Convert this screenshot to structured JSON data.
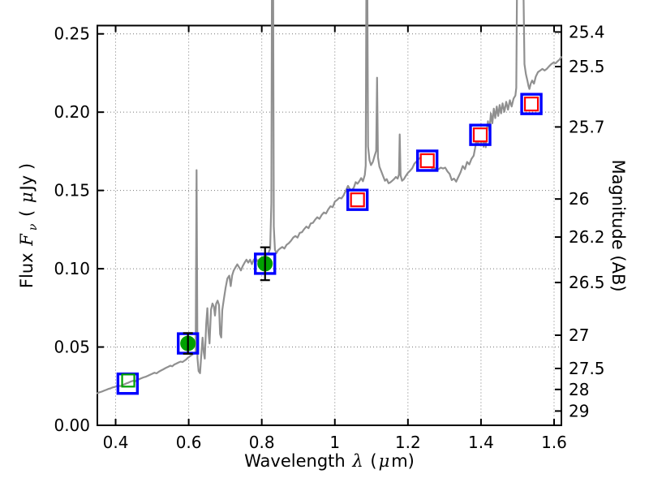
{
  "chart_data": {
    "type": "line+scatter",
    "title": "",
    "xlabel": {
      "text1": "Wavelength ",
      "lambda": "λ",
      "text2": " (",
      "mu": "μ",
      "text3": "m)"
    },
    "ylabel_left": {
      "text1": "Flux ",
      "F": "F",
      "nu": "ν",
      "text2": " ( ",
      "mu": "μ",
      "text3": "Jy )"
    },
    "ylabel_right": "Magnitude (AB)",
    "x_range": [
      0.35,
      1.62
    ],
    "y_range": [
      0.0,
      0.2553
    ],
    "grid": true,
    "x_ticks": [
      {
        "label": "0.4",
        "value": 0.4
      },
      {
        "label": "0.6",
        "value": 0.6
      },
      {
        "label": "0.8",
        "value": 0.8
      },
      {
        "label": "1",
        "value": 1.0
      },
      {
        "label": "1.2",
        "value": 1.2
      },
      {
        "label": "1.4",
        "value": 1.4
      },
      {
        "label": "1.6",
        "value": 1.6
      }
    ],
    "y_ticks_left": [
      {
        "label": "0.00",
        "value": 0.0
      },
      {
        "label": "0.05",
        "value": 0.05
      },
      {
        "label": "0.10",
        "value": 0.1
      },
      {
        "label": "0.15",
        "value": 0.15
      },
      {
        "label": "0.20",
        "value": 0.2
      },
      {
        "label": "0.25",
        "value": 0.25
      }
    ],
    "y_ticks_right": [
      {
        "label": "25.4",
        "value": 25.4,
        "flux": 0.25119
      },
      {
        "label": "25.5",
        "value": 25.5,
        "flux": 0.22909
      },
      {
        "label": "25.7",
        "value": 25.7,
        "flux": 0.19055
      },
      {
        "label": "26",
        "value": 26.0,
        "flux": 0.14454
      },
      {
        "label": "26.2",
        "value": 26.2,
        "flux": 0.12023
      },
      {
        "label": "26.5",
        "value": 26.5,
        "flux": 0.0912
      },
      {
        "label": "27",
        "value": 27.0,
        "flux": 0.05754
      },
      {
        "label": "27.5",
        "value": 27.5,
        "flux": 0.03631
      },
      {
        "label": "28",
        "value": 28.0,
        "flux": 0.02291
      },
      {
        "label": "29",
        "value": 29.0,
        "flux": 0.00912
      }
    ],
    "colors": {
      "spectrum": "#909090",
      "model_square": "#0000ff",
      "observed_green": "#00a000",
      "predicted_red": "#ff0000",
      "error_bar": "#000000",
      "grid": "#777777",
      "axes": "#000000"
    },
    "observed_circles": [
      {
        "wavelength": 0.598,
        "flux": 0.0523,
        "flux_err": 0.0066
      },
      {
        "wavelength": 0.809,
        "flux": 0.1032,
        "flux_err": 0.0105
      }
    ],
    "observed_green_square": {
      "wavelength": 0.4345,
      "flux": 0.0286
    },
    "model_blue_squares": [
      {
        "wavelength": 0.433,
        "flux": 0.0266
      },
      {
        "wavelength": 0.598,
        "flux": 0.0523
      },
      {
        "wavelength": 0.809,
        "flux": 0.1032
      },
      {
        "wavelength": 1.062,
        "flux": 0.144
      },
      {
        "wavelength": 1.253,
        "flux": 0.169
      },
      {
        "wavelength": 1.398,
        "flux": 0.1855
      },
      {
        "wavelength": 1.538,
        "flux": 0.2052
      }
    ],
    "predicted_red_squares": [
      {
        "wavelength": 1.062,
        "flux": 0.144
      },
      {
        "wavelength": 1.253,
        "flux": 0.169
      },
      {
        "wavelength": 1.398,
        "flux": 0.1855
      },
      {
        "wavelength": 1.538,
        "flux": 0.2052
      }
    ],
    "spectrum_points": [
      [
        0.35,
        0.0205
      ],
      [
        0.356,
        0.0211
      ],
      [
        0.362,
        0.0215
      ],
      [
        0.368,
        0.0221
      ],
      [
        0.374,
        0.0226
      ],
      [
        0.38,
        0.0232
      ],
      [
        0.386,
        0.0236
      ],
      [
        0.392,
        0.0242
      ],
      [
        0.398,
        0.0245
      ],
      [
        0.403,
        0.0251
      ],
      [
        0.408,
        0.0254
      ],
      [
        0.413,
        0.025
      ],
      [
        0.418,
        0.0257
      ],
      [
        0.424,
        0.0262
      ],
      [
        0.43,
        0.0268
      ],
      [
        0.436,
        0.0273
      ],
      [
        0.442,
        0.028
      ],
      [
        0.448,
        0.0284
      ],
      [
        0.453,
        0.028
      ],
      [
        0.458,
        0.0288
      ],
      [
        0.464,
        0.0294
      ],
      [
        0.47,
        0.03
      ],
      [
        0.476,
        0.0306
      ],
      [
        0.482,
        0.031
      ],
      [
        0.488,
        0.0316
      ],
      [
        0.494,
        0.0323
      ],
      [
        0.5,
        0.0329
      ],
      [
        0.506,
        0.0336
      ],
      [
        0.512,
        0.0332
      ],
      [
        0.518,
        0.0342
      ],
      [
        0.524,
        0.035
      ],
      [
        0.53,
        0.0357
      ],
      [
        0.537,
        0.0366
      ],
      [
        0.544,
        0.0374
      ],
      [
        0.55,
        0.0381
      ],
      [
        0.555,
        0.0377
      ],
      [
        0.56,
        0.0387
      ],
      [
        0.566,
        0.0394
      ],
      [
        0.572,
        0.0401
      ],
      [
        0.578,
        0.0407
      ],
      [
        0.583,
        0.0404
      ],
      [
        0.588,
        0.0412
      ],
      [
        0.593,
        0.042
      ],
      [
        0.598,
        0.0432
      ],
      [
        0.604,
        0.0442
      ],
      [
        0.61,
        0.0452
      ],
      [
        0.615,
        0.0458
      ],
      [
        0.619,
        0.0468
      ],
      [
        0.6215,
        0.163
      ],
      [
        0.624,
        0.043
      ],
      [
        0.627,
        0.0347
      ],
      [
        0.631,
        0.0333
      ],
      [
        0.635,
        0.047
      ],
      [
        0.638,
        0.056
      ],
      [
        0.641,
        0.0468
      ],
      [
        0.644,
        0.0426
      ],
      [
        0.648,
        0.0648
      ],
      [
        0.651,
        0.0748
      ],
      [
        0.654,
        0.0601
      ],
      [
        0.657,
        0.0523
      ],
      [
        0.661,
        0.0738
      ],
      [
        0.665,
        0.0778
      ],
      [
        0.669,
        0.0758
      ],
      [
        0.672,
        0.0701
      ],
      [
        0.675,
        0.0776
      ],
      [
        0.679,
        0.0796
      ],
      [
        0.683,
        0.0768
      ],
      [
        0.686,
        0.0583
      ],
      [
        0.689,
        0.0561
      ],
      [
        0.692,
        0.0736
      ],
      [
        0.696,
        0.0801
      ],
      [
        0.701,
        0.0878
      ],
      [
        0.706,
        0.0938
      ],
      [
        0.711,
        0.0956
      ],
      [
        0.715,
        0.0889
      ],
      [
        0.719,
        0.0958
      ],
      [
        0.723,
        0.0988
      ],
      [
        0.728,
        0.1008
      ],
      [
        0.733,
        0.1028
      ],
      [
        0.738,
        0.1009
      ],
      [
        0.743,
        0.0989
      ],
      [
        0.748,
        0.1018
      ],
      [
        0.753,
        0.1039
      ],
      [
        0.758,
        0.1058
      ],
      [
        0.763,
        0.1039
      ],
      [
        0.768,
        0.1058
      ],
      [
        0.773,
        0.1029
      ],
      [
        0.778,
        0.1058
      ],
      [
        0.783,
        0.1068
      ],
      [
        0.788,
        0.1049
      ],
      [
        0.793,
        0.1059
      ],
      [
        0.798,
        0.1069
      ],
      [
        0.803,
        0.1059
      ],
      [
        0.808,
        0.1079
      ],
      [
        0.813,
        0.1089
      ],
      [
        0.818,
        0.1099
      ],
      [
        0.823,
        0.1129
      ],
      [
        0.8262,
        0.142
      ],
      [
        0.8278,
        0.28
      ],
      [
        0.8312,
        0.28
      ],
      [
        0.833,
        0.127
      ],
      [
        0.836,
        0.1122
      ],
      [
        0.84,
        0.1099
      ],
      [
        0.845,
        0.1119
      ],
      [
        0.85,
        0.1129
      ],
      [
        0.856,
        0.1139
      ],
      [
        0.862,
        0.1129
      ],
      [
        0.868,
        0.1153
      ],
      [
        0.874,
        0.1163
      ],
      [
        0.88,
        0.1179
      ],
      [
        0.886,
        0.1199
      ],
      [
        0.892,
        0.1209
      ],
      [
        0.898,
        0.1199
      ],
      [
        0.904,
        0.1229
      ],
      [
        0.91,
        0.1233
      ],
      [
        0.916,
        0.1253
      ],
      [
        0.922,
        0.1269
      ],
      [
        0.928,
        0.1259
      ],
      [
        0.934,
        0.1289
      ],
      [
        0.94,
        0.1293
      ],
      [
        0.946,
        0.1313
      ],
      [
        0.952,
        0.1329
      ],
      [
        0.958,
        0.1319
      ],
      [
        0.964,
        0.1343
      ],
      [
        0.97,
        0.1359
      ],
      [
        0.976,
        0.1353
      ],
      [
        0.982,
        0.1379
      ],
      [
        0.988,
        0.1399
      ],
      [
        0.994,
        0.1393
      ],
      [
        1.0,
        0.1429
      ],
      [
        1.006,
        0.1439
      ],
      [
        1.012,
        0.1453
      ],
      [
        1.018,
        0.1449
      ],
      [
        1.024,
        0.1469
      ],
      [
        1.03,
        0.1499
      ],
      [
        1.036,
        0.1529
      ],
      [
        1.041,
        0.1509
      ],
      [
        1.046,
        0.1499
      ],
      [
        1.052,
        0.1519
      ],
      [
        1.057,
        0.1553
      ],
      [
        1.062,
        0.1543
      ],
      [
        1.067,
        0.1559
      ],
      [
        1.072,
        0.1579
      ],
      [
        1.077,
        0.1559
      ],
      [
        1.082,
        0.1599
      ],
      [
        1.0845,
        0.1659
      ],
      [
        1.0862,
        0.28
      ],
      [
        1.0888,
        0.28
      ],
      [
        1.091,
        0.178
      ],
      [
        1.095,
        0.1692
      ],
      [
        1.099,
        0.1662
      ],
      [
        1.104,
        0.1682
      ],
      [
        1.109,
        0.1722
      ],
      [
        1.113,
        0.1752
      ],
      [
        1.1156,
        0.222
      ],
      [
        1.118,
        0.1712
      ],
      [
        1.122,
        0.1652
      ],
      [
        1.127,
        0.1622
      ],
      [
        1.132,
        0.1592
      ],
      [
        1.137,
        0.1562
      ],
      [
        1.142,
        0.1572
      ],
      [
        1.147,
        0.1546
      ],
      [
        1.152,
        0.1552
      ],
      [
        1.157,
        0.1562
      ],
      [
        1.162,
        0.1572
      ],
      [
        1.167,
        0.1586
      ],
      [
        1.172,
        0.1576
      ],
      [
        1.1755,
        0.1602
      ],
      [
        1.1775,
        0.1858
      ],
      [
        1.18,
        0.1596
      ],
      [
        1.184,
        0.1562
      ],
      [
        1.189,
        0.1572
      ],
      [
        1.194,
        0.1592
      ],
      [
        1.2,
        0.1612
      ],
      [
        1.206,
        0.1626
      ],
      [
        1.212,
        0.1642
      ],
      [
        1.218,
        0.1672
      ],
      [
        1.224,
        0.1686
      ],
      [
        1.23,
        0.1702
      ],
      [
        1.236,
        0.1712
      ],
      [
        1.242,
        0.1706
      ],
      [
        1.248,
        0.1686
      ],
      [
        1.254,
        0.1672
      ],
      [
        1.26,
        0.1656
      ],
      [
        1.266,
        0.1642
      ],
      [
        1.272,
        0.1646
      ],
      [
        1.278,
        0.163
      ],
      [
        1.284,
        0.1636
      ],
      [
        1.29,
        0.1646
      ],
      [
        1.296,
        0.164
      ],
      [
        1.302,
        0.1646
      ],
      [
        1.308,
        0.1622
      ],
      [
        1.314,
        0.1606
      ],
      [
        1.32,
        0.1566
      ],
      [
        1.326,
        0.1576
      ],
      [
        1.332,
        0.1556
      ],
      [
        1.338,
        0.1586
      ],
      [
        1.344,
        0.1616
      ],
      [
        1.35,
        0.1656
      ],
      [
        1.356,
        0.1636
      ],
      [
        1.362,
        0.1682
      ],
      [
        1.368,
        0.1666
      ],
      [
        1.374,
        0.1702
      ],
      [
        1.38,
        0.1722
      ],
      [
        1.384,
        0.1772
      ],
      [
        1.388,
        0.1829
      ],
      [
        1.392,
        0.1792
      ],
      [
        1.396,
        0.1876
      ],
      [
        1.4,
        0.1799
      ],
      [
        1.4035,
        0.1892
      ],
      [
        1.407,
        0.1779
      ],
      [
        1.41,
        0.1882
      ],
      [
        1.413,
        0.1776
      ],
      [
        1.416,
        0.1892
      ],
      [
        1.419,
        0.1942
      ],
      [
        1.423,
        0.1882
      ],
      [
        1.427,
        0.1992
      ],
      [
        1.431,
        0.1929
      ],
      [
        1.435,
        0.2022
      ],
      [
        1.439,
        0.1962
      ],
      [
        1.443,
        0.2036
      ],
      [
        1.447,
        0.1976
      ],
      [
        1.451,
        0.2046
      ],
      [
        1.455,
        0.1992
      ],
      [
        1.459,
        0.2056
      ],
      [
        1.464,
        0.2002
      ],
      [
        1.469,
        0.2066
      ],
      [
        1.474,
        0.2016
      ],
      [
        1.479,
        0.2076
      ],
      [
        1.484,
        0.2036
      ],
      [
        1.489,
        0.2086
      ],
      [
        1.494,
        0.2106
      ],
      [
        1.4965,
        0.2156
      ],
      [
        1.4985,
        0.28
      ],
      [
        1.516,
        0.28
      ],
      [
        1.519,
        0.2306
      ],
      [
        1.523,
        0.2242
      ],
      [
        1.527,
        0.2202
      ],
      [
        1.53,
        0.2166
      ],
      [
        1.5325,
        0.2148
      ],
      [
        1.536,
        0.2182
      ],
      [
        1.54,
        0.2202
      ],
      [
        1.545,
        0.2182
      ],
      [
        1.55,
        0.2228
      ],
      [
        1.556,
        0.2256
      ],
      [
        1.562,
        0.2266
      ],
      [
        1.568,
        0.2276
      ],
      [
        1.574,
        0.2266
      ],
      [
        1.58,
        0.2276
      ],
      [
        1.586,
        0.2292
      ],
      [
        1.592,
        0.2306
      ],
      [
        1.598,
        0.2316
      ],
      [
        1.604,
        0.2312
      ],
      [
        1.61,
        0.2326
      ],
      [
        1.615,
        0.2336
      ],
      [
        1.62,
        0.2352
      ]
    ]
  }
}
